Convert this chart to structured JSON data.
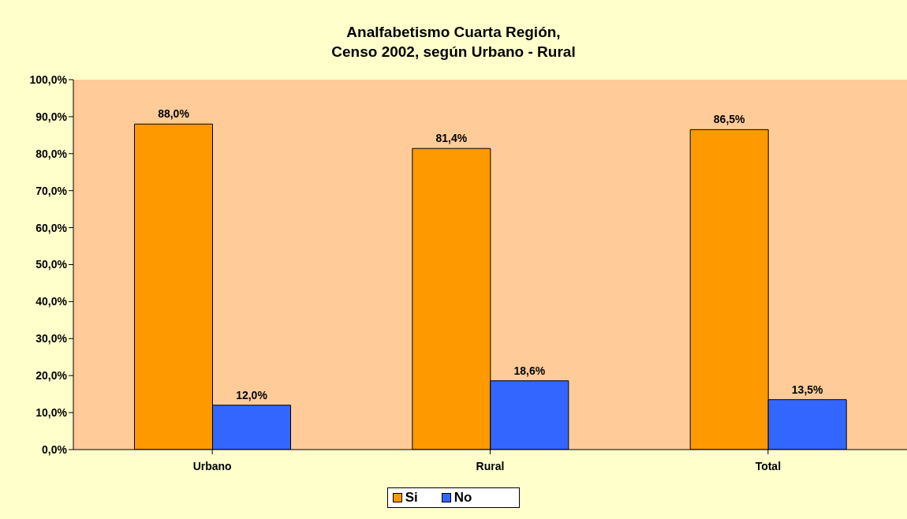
{
  "chart_data": {
    "type": "bar",
    "title": "Analfabetismo Cuarta Región,\nCenso 2002, según Urbano - Rural",
    "categories": [
      "Urbano",
      "Rural",
      "Total"
    ],
    "series": [
      {
        "name": "Si",
        "color": "#ff9900",
        "values": [
          88.0,
          81.4,
          86.5
        ],
        "value_labels": [
          "88,0%",
          "81,4%",
          "86,5%"
        ]
      },
      {
        "name": "No",
        "color": "#3366ff",
        "values": [
          12.0,
          18.6,
          13.5
        ],
        "value_labels": [
          "12,0%",
          "18,6%",
          "13,5%"
        ]
      }
    ],
    "ylim": [
      0,
      100
    ],
    "yticks": [
      {
        "value": 0,
        "label": "0,0%"
      },
      {
        "value": 10,
        "label": "10,0%"
      },
      {
        "value": 20,
        "label": "20,0%"
      },
      {
        "value": 30,
        "label": "30,0%"
      },
      {
        "value": 40,
        "label": "40,0%"
      },
      {
        "value": 50,
        "label": "50,0%"
      },
      {
        "value": 60,
        "label": "60,0%"
      },
      {
        "value": 70,
        "label": "70,0%"
      },
      {
        "value": 80,
        "label": "80,0%"
      },
      {
        "value": 90,
        "label": "90,0%"
      },
      {
        "value": 100,
        "label": "100,0%"
      }
    ],
    "grid": false,
    "legend": "bottom"
  }
}
